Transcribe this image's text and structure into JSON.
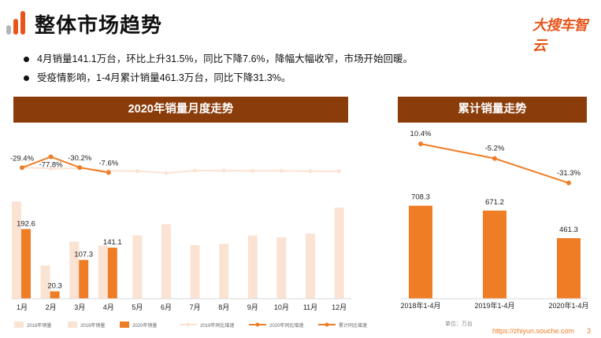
{
  "header": {
    "title": "整体市场趋势",
    "brand": "大搜车智云",
    "logo_colors": [
      "#b5b5b5",
      "#e8541a",
      "#e8541a"
    ]
  },
  "bullets": [
    "4月销量141.1万台，环比上升31.5%，同比下降7.6%，降幅大幅收窄，市场开始回暖。",
    "受疫情影响，1-4月累计销量461.3万台，同比下降31.3%。"
  ],
  "colors": {
    "banner": "#8a3d0b",
    "bar_2018": "#fbe3d4",
    "bar_2019": "#fbe3d4",
    "bar_2020": "#ef7d26",
    "line_2019": "#fbe3d4",
    "line_2020": "#ef7d26",
    "accent": "#ef7d26"
  },
  "chart_data": [
    {
      "title": "2020年销量月度走势",
      "type": "bar+line",
      "categories": [
        "1月",
        "2月",
        "3月",
        "4月",
        "5月",
        "6月",
        "7月",
        "8月",
        "9月",
        "10月",
        "11月",
        "12月"
      ],
      "series": [
        {
          "name": "2018年销量",
          "type": "bar",
          "values": [
            269,
            92,
            158,
            147,
            null,
            null,
            null,
            null,
            null,
            null,
            null,
            null
          ]
        },
        {
          "name": "2019年销量",
          "type": "bar",
          "values": [
            null,
            null,
            null,
            null,
            175,
            206,
            148,
            152,
            175,
            170,
            180,
            252
          ]
        },
        {
          "name": "2020年销量",
          "type": "bar",
          "values": [
            192.6,
            20.3,
            107.3,
            141.1,
            null,
            null,
            null,
            null,
            null,
            null,
            null,
            null
          ]
        },
        {
          "name": "2019年同比增速",
          "type": "line",
          "values": [
            -31,
            -25,
            -27,
            -16,
            -14,
            -6,
            -16,
            -16,
            -15,
            -15,
            -14,
            -14
          ]
        },
        {
          "name": "2020年同比增速",
          "type": "line",
          "values": [
            -29.4,
            -77.8,
            -30.2,
            -7.6,
            null,
            null,
            null,
            null,
            null,
            null,
            null,
            null
          ]
        }
      ],
      "bar_labels": [
        "192.6",
        "20.3",
        "107.3",
        "141.1"
      ],
      "line_labels": [
        "-29.4%",
        "-77.8%",
        "-30.2%",
        "-7.6%"
      ],
      "legend": [
        "2018年销量",
        "2019年销量",
        "2020年销量",
        "2019年同比增速",
        "2020年同比增速",
        "累计同比增速"
      ],
      "legend_position": "bottom",
      "grid": false
    },
    {
      "title": "累计销量走势",
      "type": "bar+line",
      "categories": [
        "2018年1-4月",
        "2019年1-4月",
        "2020年1-4月"
      ],
      "series": [
        {
          "name": "累计销量",
          "type": "bar",
          "values": [
            708.3,
            671.2,
            461.3
          ]
        },
        {
          "name": "累计同比增速",
          "type": "line",
          "values": [
            10.4,
            -5.2,
            -31.3
          ]
        }
      ],
      "bar_labels": [
        "708.3",
        "671.2",
        "461.3"
      ],
      "line_labels": [
        "10.4%",
        "-5.2%",
        "-31.3%"
      ],
      "grid": false
    }
  ],
  "footer": {
    "unit": "单位：万台",
    "url": "https://zhiyun.souche.com",
    "page": "3"
  }
}
